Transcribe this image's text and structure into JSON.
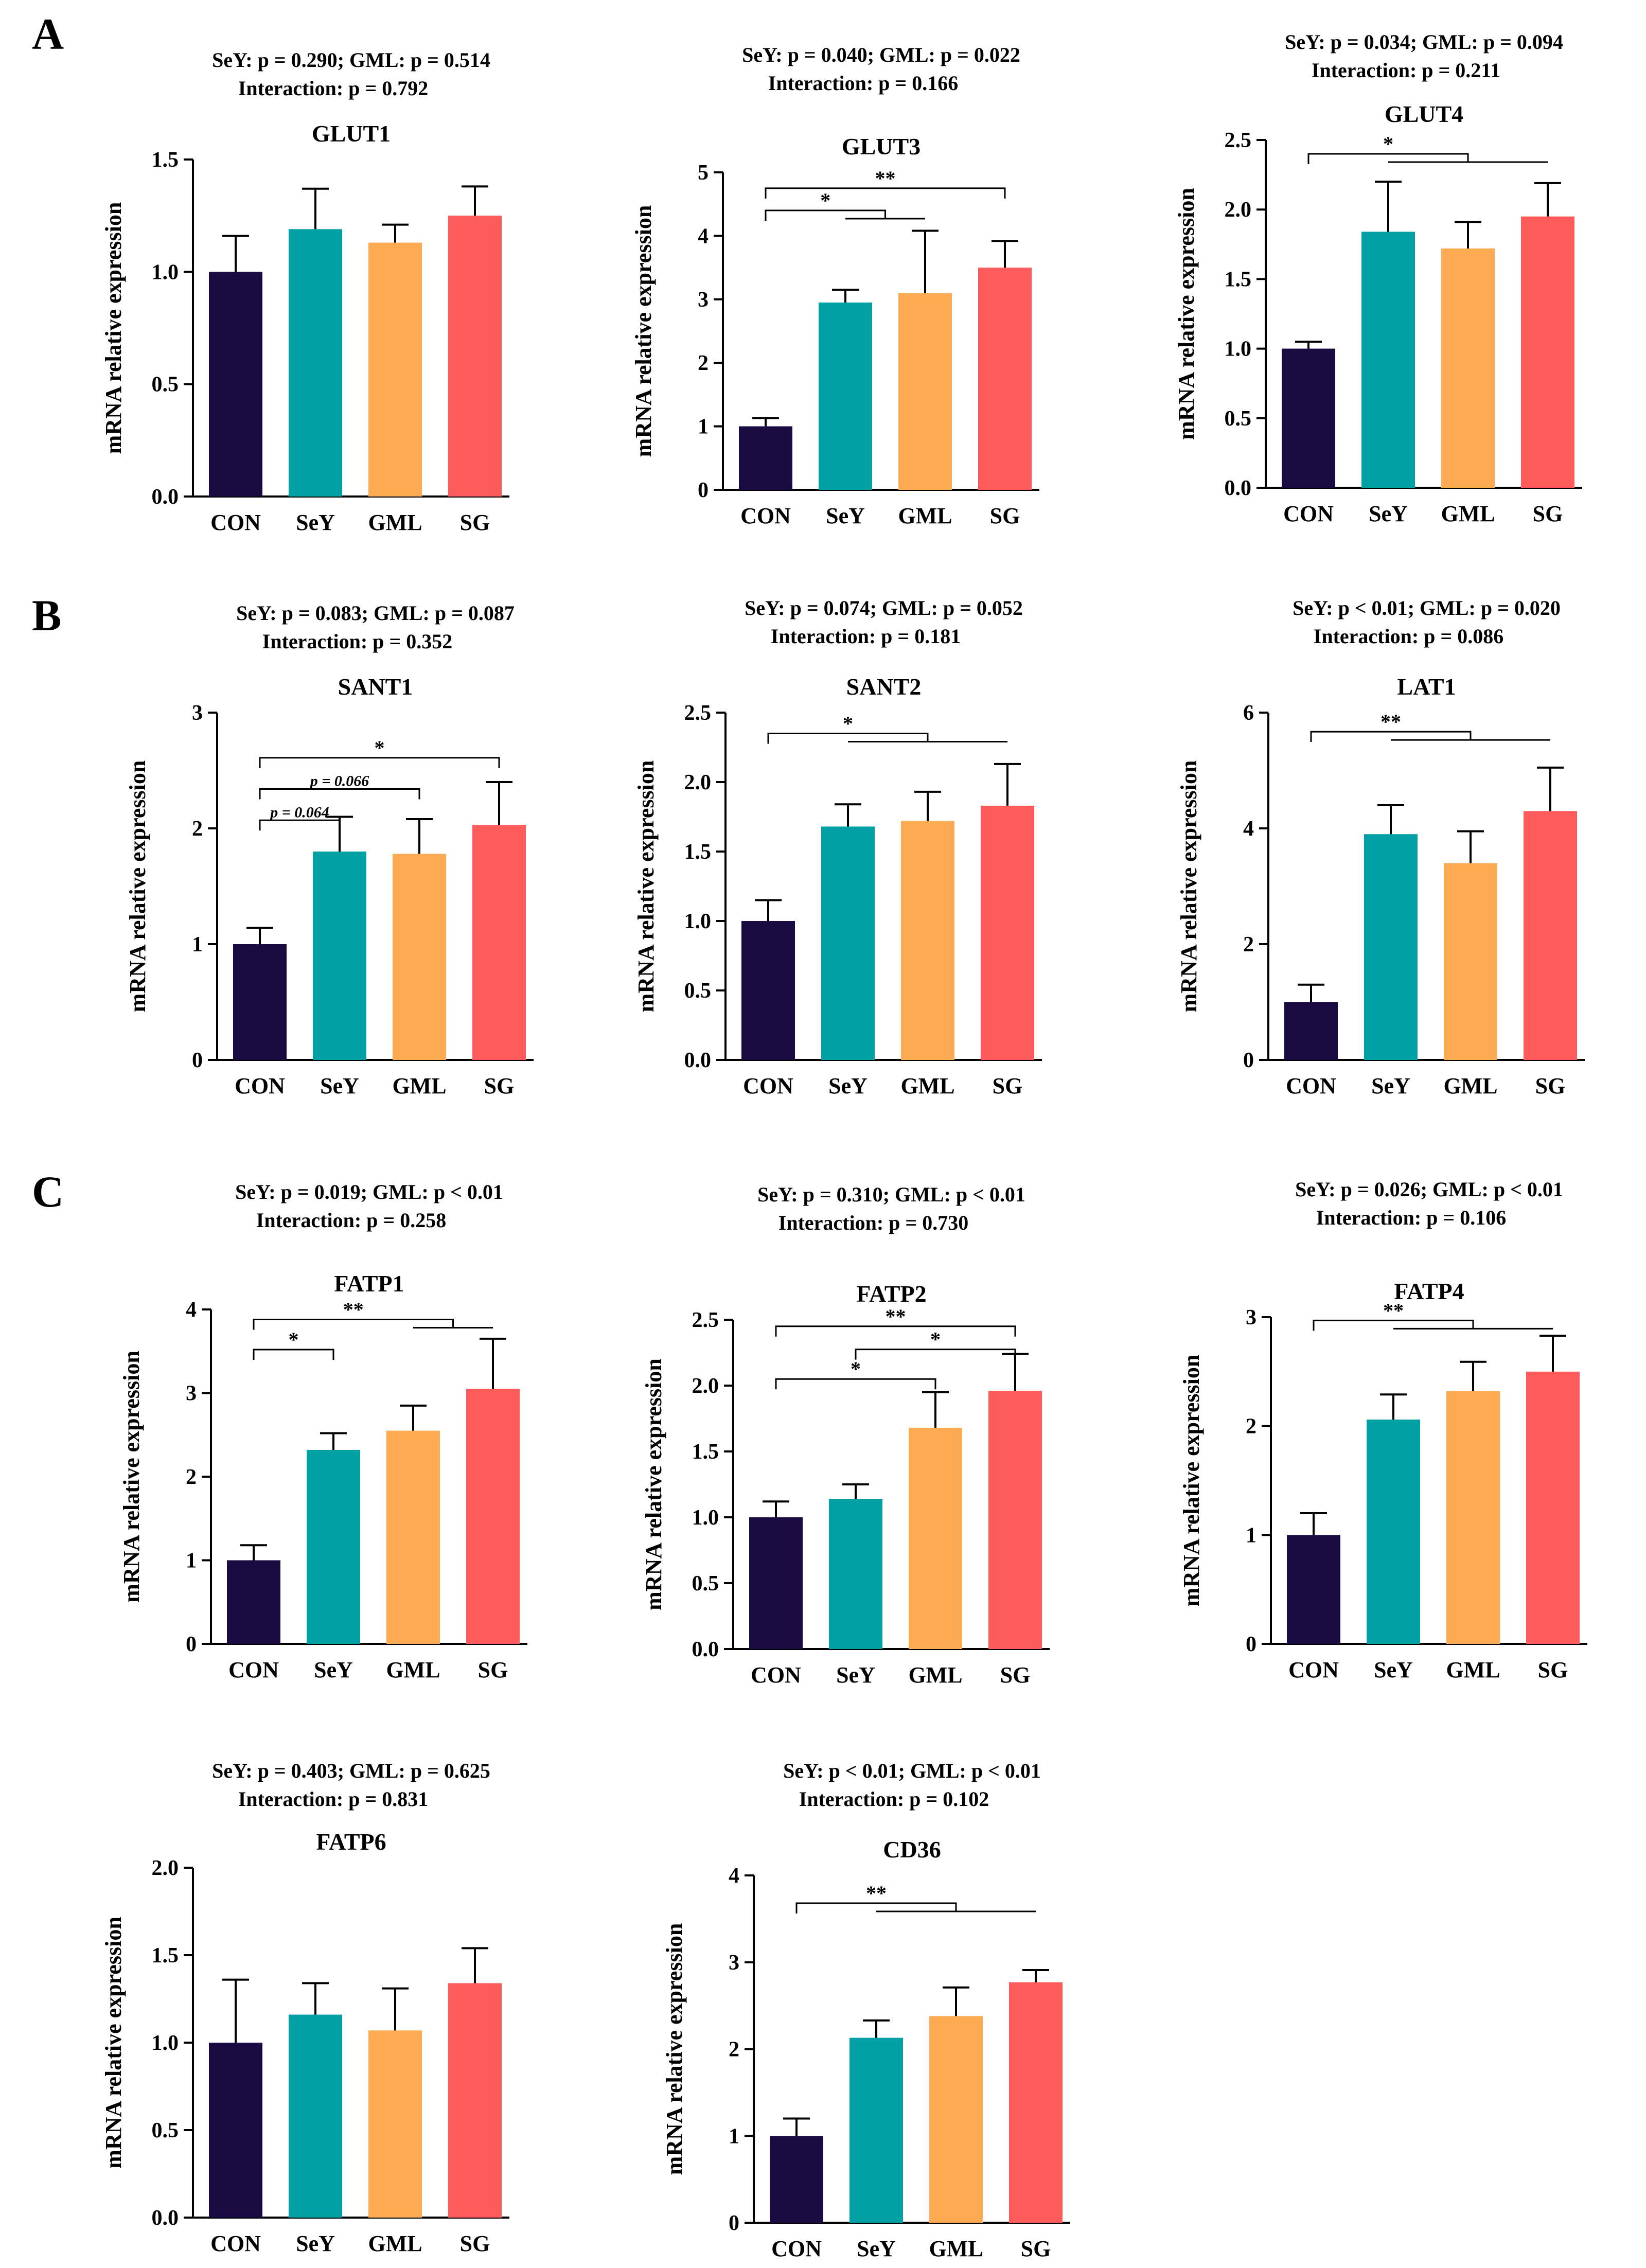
{
  "figure": {
    "panel_labels": [
      "A",
      "B",
      "C"
    ],
    "group_colors": {
      "CON": "#1a0a42",
      "SeY": "#00a0a4",
      "GML": "#fdab53",
      "SG": "#fe5b5d"
    }
  },
  "chart_data": [
    {
      "type": "bar",
      "title": "GLUT1",
      "panel": "A",
      "stats_line1": "SeY: p = 0.290;  GML: p = 0.514",
      "stats_line2": "Interaction: p = 0.792",
      "categories": [
        "CON",
        "SeY",
        "GML",
        "SG"
      ],
      "values": [
        1.0,
        1.19,
        1.13,
        1.25
      ],
      "errors": [
        0.16,
        0.18,
        0.08,
        0.13
      ],
      "ylabel": "mRNA relative expression",
      "ylim": [
        0,
        1.5
      ],
      "yticks": [
        0.0,
        0.5,
        1.0,
        1.5
      ],
      "ytick_labels": [
        "0.0",
        "0.5",
        "1.0",
        "1.5"
      ],
      "annotations": []
    },
    {
      "type": "bar",
      "title": "GLUT3",
      "stats_line1": "SeY: p = 0.040;  GML: p = 0.022",
      "stats_line2": "Interaction: p = 0.166",
      "categories": [
        "CON",
        "SeY",
        "GML",
        "SG"
      ],
      "values": [
        1.0,
        2.95,
        3.1,
        3.5
      ],
      "errors": [
        0.13,
        0.2,
        0.98,
        0.42
      ],
      "ylabel": "mRNA relative expression",
      "ylim": [
        0,
        5
      ],
      "yticks": [
        0,
        1,
        2,
        3,
        4,
        5
      ],
      "ytick_labels": [
        "0",
        "1",
        "2",
        "3",
        "4",
        "5"
      ],
      "annotations": [
        {
          "type": "bracket",
          "from": 0,
          "to": 3,
          "level": 0.95,
          "label": "**"
        },
        {
          "type": "bracket",
          "from": 0,
          "to": [
            1,
            2
          ],
          "level": 0.88,
          "label": "*"
        }
      ]
    },
    {
      "type": "bar",
      "title": "GLUT4",
      "stats_line1": "SeY: p = 0.034;  GML: p = 0.094",
      "stats_line2": "Interaction: p = 0.211",
      "categories": [
        "CON",
        "SeY",
        "GML",
        "SG"
      ],
      "values": [
        1.0,
        1.84,
        1.72,
        1.95
      ],
      "errors": [
        0.05,
        0.36,
        0.19,
        0.24
      ],
      "ylabel": "mRNA relative expression",
      "ylim": [
        0,
        2.5
      ],
      "yticks": [
        0.0,
        0.5,
        1.0,
        1.5,
        2.0,
        2.5
      ],
      "ytick_labels": [
        "0.0",
        "0.5",
        "1.0",
        "1.5",
        "2.0",
        "2.5"
      ],
      "annotations": [
        {
          "type": "bracket",
          "from": 0,
          "to": [
            1,
            2,
            3
          ],
          "level": 0.96,
          "label": "*"
        }
      ]
    },
    {
      "type": "bar",
      "title": "SANT1",
      "panel": "B",
      "stats_line1": "SeY: p = 0.083;  GML: p = 0.087",
      "stats_line2": "Interaction: p = 0.352",
      "categories": [
        "CON",
        "SeY",
        "GML",
        "SG"
      ],
      "values": [
        1.0,
        1.8,
        1.78,
        2.03
      ],
      "errors": [
        0.14,
        0.3,
        0.3,
        0.37
      ],
      "ylabel": "mRNA relative expression",
      "ylim": [
        0,
        3
      ],
      "yticks": [
        0,
        1,
        2,
        3
      ],
      "ytick_labels": [
        "0",
        "1",
        "2",
        "3"
      ],
      "annotations": [
        {
          "type": "bracket",
          "from": 0,
          "to": 3,
          "level": 0.87,
          "label": "*"
        },
        {
          "type": "bracket",
          "from": 0,
          "to": 2,
          "level": 0.78,
          "label": "p = 0.066"
        },
        {
          "type": "bracket",
          "from": 0,
          "to": 1,
          "level": 0.69,
          "label": "p = 0.064"
        }
      ]
    },
    {
      "type": "bar",
      "title": "SANT2",
      "stats_line1": "SeY: p = 0.074;  GML: p = 0.052",
      "stats_line2": "Interaction: p = 0.181",
      "categories": [
        "CON",
        "SeY",
        "GML",
        "SG"
      ],
      "values": [
        1.0,
        1.68,
        1.72,
        1.83
      ],
      "errors": [
        0.15,
        0.16,
        0.21,
        0.3
      ],
      "ylabel": "mRNA relative expression",
      "ylim": [
        0,
        2.5
      ],
      "yticks": [
        0.0,
        0.5,
        1.0,
        1.5,
        2.0,
        2.5
      ],
      "ytick_labels": [
        "0.0",
        "0.5",
        "1.0",
        "1.5",
        "2.0",
        "2.5"
      ],
      "annotations": [
        {
          "type": "bracket",
          "from": 0,
          "to": [
            1,
            2,
            3
          ],
          "level": 0.94,
          "label": "*"
        }
      ]
    },
    {
      "type": "bar",
      "title": "LAT1",
      "stats_line1": "SeY: p < 0.01;  GML: p = 0.020",
      "stats_line2": "Interaction: p = 0.086",
      "categories": [
        "CON",
        "SeY",
        "GML",
        "SG"
      ],
      "values": [
        1.0,
        3.9,
        3.4,
        4.3
      ],
      "errors": [
        0.3,
        0.5,
        0.55,
        0.75
      ],
      "ylabel": "mRNA relative expression",
      "ylim": [
        0,
        6
      ],
      "yticks": [
        0,
        2,
        4,
        6
      ],
      "ytick_labels": [
        "0",
        "2",
        "4",
        "6"
      ],
      "annotations": [
        {
          "type": "bracket",
          "from": 0,
          "to": [
            1,
            2,
            3
          ],
          "level": 0.945,
          "label": "**"
        }
      ]
    },
    {
      "type": "bar",
      "title": "FATP1",
      "panel": "C",
      "stats_line1": "SeY: p = 0.019;  GML: p < 0.01",
      "stats_line2": "Interaction: p = 0.258",
      "categories": [
        "CON",
        "SeY",
        "GML",
        "SG"
      ],
      "values": [
        1.0,
        2.32,
        2.55,
        3.05
      ],
      "errors": [
        0.18,
        0.2,
        0.3,
        0.6
      ],
      "ylabel": "mRNA relative expression",
      "ylim": [
        0,
        4
      ],
      "yticks": [
        0,
        1,
        2,
        3,
        4
      ],
      "ytick_labels": [
        "0",
        "1",
        "2",
        "3",
        "4"
      ],
      "annotations": [
        {
          "type": "bracket",
          "from": 0,
          "to": [
            2,
            3
          ],
          "level": 0.97,
          "label": "**"
        },
        {
          "type": "bracket",
          "from": 0,
          "to": 1,
          "level": 0.88,
          "label": "*"
        }
      ]
    },
    {
      "type": "bar",
      "title": "FATP2",
      "stats_line1": "SeY: p = 0.310;  GML: p < 0.01",
      "stats_line2": "Interaction: p = 0.730",
      "categories": [
        "CON",
        "SeY",
        "GML",
        "SG"
      ],
      "values": [
        1.0,
        1.14,
        1.68,
        1.96
      ],
      "errors": [
        0.12,
        0.11,
        0.27,
        0.28
      ],
      "ylabel": "mRNA relative expression",
      "ylim": [
        0,
        2.5
      ],
      "yticks": [
        0.0,
        0.5,
        1.0,
        1.5,
        2.0,
        2.5
      ],
      "ytick_labels": [
        "0.0",
        "0.5",
        "1.0",
        "1.5",
        "2.0",
        "2.5"
      ],
      "annotations": [
        {
          "type": "bracket",
          "from": 0,
          "to": 3,
          "level": 0.98,
          "label": "**"
        },
        {
          "type": "bracket",
          "from": 1,
          "to": 3,
          "level": 0.91,
          "label": "*"
        },
        {
          "type": "bracket",
          "from": 0,
          "to": 2,
          "level": 0.82,
          "label": "*"
        }
      ]
    },
    {
      "type": "bar",
      "title": "FATP4",
      "stats_line1": "SeY: p = 0.026;  GML: p < 0.01",
      "stats_line2": "Interaction: p = 0.106",
      "categories": [
        "CON",
        "SeY",
        "GML",
        "SG"
      ],
      "values": [
        1.0,
        2.06,
        2.32,
        2.5
      ],
      "errors": [
        0.2,
        0.23,
        0.27,
        0.33
      ],
      "ylabel": "mRNA relative expression",
      "ylim": [
        0,
        3
      ],
      "yticks": [
        0,
        1,
        2,
        3
      ],
      "ytick_labels": [
        "0",
        "1",
        "2",
        "3"
      ],
      "annotations": [
        {
          "type": "bracket",
          "from": 0,
          "to": [
            1,
            2,
            3
          ],
          "level": 0.99,
          "label": "**"
        }
      ]
    },
    {
      "type": "bar",
      "title": "FATP6",
      "stats_line1": "SeY: p = 0.403;  GML: p = 0.625",
      "stats_line2": "Interaction: p = 0.831",
      "categories": [
        "CON",
        "SeY",
        "GML",
        "SG"
      ],
      "values": [
        1.0,
        1.16,
        1.07,
        1.34
      ],
      "errors": [
        0.36,
        0.18,
        0.24,
        0.2
      ],
      "ylabel": "mRNA relative expression",
      "ylim": [
        0,
        2.0
      ],
      "yticks": [
        0.0,
        0.5,
        1.0,
        1.5,
        2.0
      ],
      "ytick_labels": [
        "0.0",
        "0.5",
        "1.0",
        "1.5",
        "2.0"
      ],
      "annotations": []
    },
    {
      "type": "bar",
      "title": "CD36",
      "stats_line1": "SeY: p < 0.01;  GML: p < 0.01",
      "stats_line2": "Interaction: p = 0.102",
      "categories": [
        "CON",
        "SeY",
        "GML",
        "SG"
      ],
      "values": [
        1.0,
        2.13,
        2.38,
        2.77
      ],
      "errors": [
        0.2,
        0.2,
        0.33,
        0.14
      ],
      "ylabel": "mRNA relative expression",
      "ylim": [
        0,
        4
      ],
      "yticks": [
        0,
        1,
        2,
        3,
        4
      ],
      "ytick_labels": [
        "0",
        "1",
        "2",
        "3",
        "4"
      ],
      "annotations": [
        {
          "type": "bracket",
          "from": 0,
          "to": [
            1,
            2,
            3
          ],
          "level": 0.92,
          "label": "**"
        }
      ]
    }
  ]
}
